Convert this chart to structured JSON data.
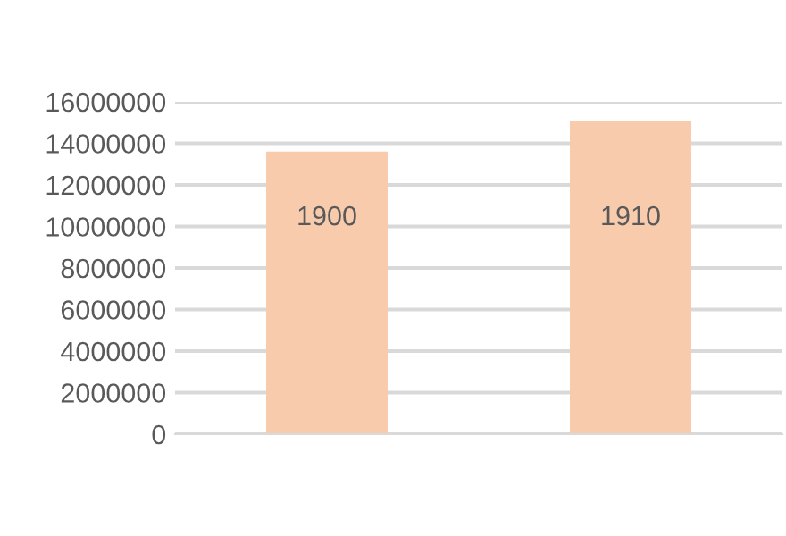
{
  "chart_data": {
    "type": "bar",
    "categories": [
      "1900",
      "1910"
    ],
    "values": [
      13600000,
      15100000
    ],
    "color": "#f8cbad",
    "ylim": [
      0,
      16000000
    ],
    "yticks": [
      0,
      2000000,
      4000000,
      6000000,
      8000000,
      10000000,
      12000000,
      14000000,
      16000000
    ],
    "grid": "y"
  }
}
